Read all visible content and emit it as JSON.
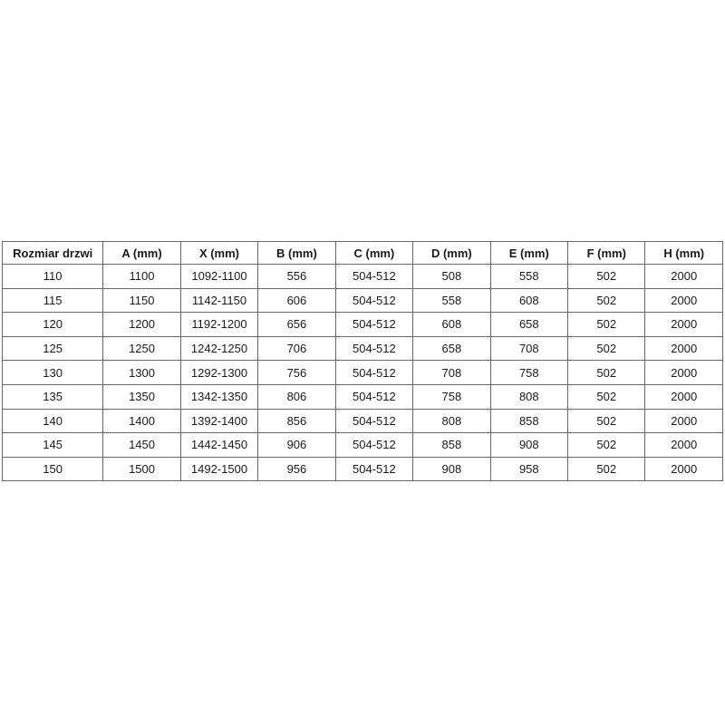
{
  "page": {
    "background_color": "#ffffff",
    "text_color": "#1a1a1a",
    "border_color": "#666666"
  },
  "table": {
    "columns": [
      "Rozmiar drzwi",
      "A (mm)",
      "X (mm)",
      "B (mm)",
      "C (mm)",
      "D (mm)",
      "E (mm)",
      "F (mm)",
      "H (mm)"
    ],
    "rows": [
      [
        "110",
        "1100",
        "1092-1100",
        "556",
        "504-512",
        "508",
        "558",
        "502",
        "2000"
      ],
      [
        "115",
        "1150",
        "1142-1150",
        "606",
        "504-512",
        "558",
        "608",
        "502",
        "2000"
      ],
      [
        "120",
        "1200",
        "1192-1200",
        "656",
        "504-512",
        "608",
        "658",
        "502",
        "2000"
      ],
      [
        "125",
        "1250",
        "1242-1250",
        "706",
        "504-512",
        "658",
        "708",
        "502",
        "2000"
      ],
      [
        "130",
        "1300",
        "1292-1300",
        "756",
        "504-512",
        "708",
        "758",
        "502",
        "2000"
      ],
      [
        "135",
        "1350",
        "1342-1350",
        "806",
        "504-512",
        "758",
        "808",
        "502",
        "2000"
      ],
      [
        "140",
        "1400",
        "1392-1400",
        "856",
        "504-512",
        "808",
        "858",
        "502",
        "2000"
      ],
      [
        "145",
        "1450",
        "1442-1450",
        "906",
        "504-512",
        "858",
        "908",
        "502",
        "2000"
      ],
      [
        "150",
        "1500",
        "1492-1500",
        "956",
        "504-512",
        "908",
        "958",
        "502",
        "2000"
      ]
    ]
  }
}
